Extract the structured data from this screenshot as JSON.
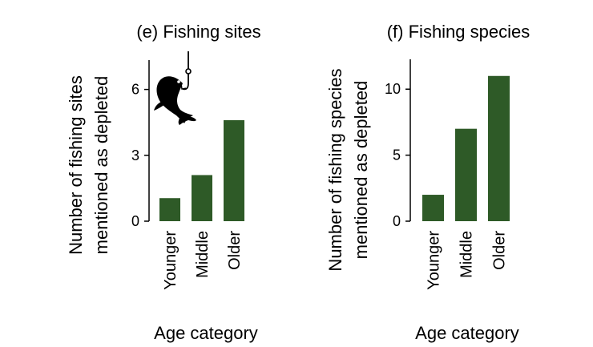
{
  "chart_data": [
    {
      "type": "bar",
      "title": "(e) Fishing sites",
      "xlabel": "Age category",
      "ylabel_lines": [
        "Number of fishing sites",
        "mentioned as depleted"
      ],
      "categories": [
        "Younger",
        "Middle",
        "Older"
      ],
      "values": [
        1.05,
        2.1,
        4.6
      ],
      "yticks": [
        0,
        3,
        6
      ],
      "ylim": [
        0,
        7.3
      ],
      "bar_color": "#2e5a27",
      "icon": "fish-on-hook-icon"
    },
    {
      "type": "bar",
      "title": "(f) Fishing species",
      "xlabel": "Age category",
      "ylabel_lines": [
        "Number of fishing species",
        "mentioned as depleted"
      ],
      "categories": [
        "Younger",
        "Middle",
        "Older"
      ],
      "values": [
        2,
        7,
        11
      ],
      "yticks": [
        0,
        5,
        10
      ],
      "ylim": [
        0,
        12.2
      ],
      "bar_color": "#2e5a27"
    }
  ]
}
